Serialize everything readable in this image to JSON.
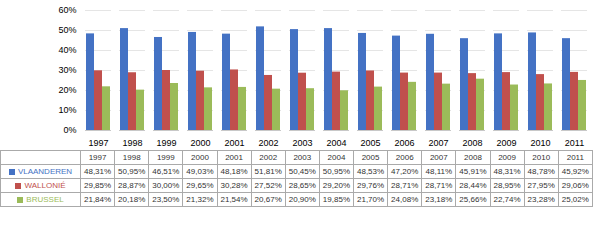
{
  "chart_data": {
    "type": "bar",
    "categories": [
      "1997",
      "1998",
      "1999",
      "2000",
      "2001",
      "2002",
      "2003",
      "2004",
      "2005",
      "2006",
      "2007",
      "2008",
      "2009",
      "2010",
      "2011"
    ],
    "series": [
      {
        "name": "VLAANDEREN",
        "color": "#4472C4",
        "values": [
          48.31,
          50.95,
          46.51,
          49.03,
          48.18,
          51.81,
          50.45,
          50.95,
          48.53,
          47.2,
          48.11,
          45.91,
          48.31,
          48.78,
          45.92
        ],
        "value_labels": [
          "48,31%",
          "50,95%",
          "46,51%",
          "49,03%",
          "48,18%",
          "51,81%",
          "50,45%",
          "50,95%",
          "48,53%",
          "47,20%",
          "48,11%",
          "45,91%",
          "48,31%",
          "48,78%",
          "45,92%"
        ]
      },
      {
        "name": "WALLONIÉ",
        "color": "#C0504D",
        "values": [
          29.85,
          28.87,
          30.0,
          29.65,
          30.28,
          27.52,
          28.65,
          29.2,
          29.76,
          28.71,
          28.71,
          28.44,
          28.95,
          27.95,
          29.06
        ],
        "value_labels": [
          "29,85%",
          "28,87%",
          "30,00%",
          "29,65%",
          "30,28%",
          "27,52%",
          "28,65%",
          "29,20%",
          "29,76%",
          "28,71%",
          "28,71%",
          "28,44%",
          "28,95%",
          "27,95%",
          "29,06%"
        ]
      },
      {
        "name": "BRUSSEL",
        "color": "#9BBB59",
        "values": [
          21.84,
          20.18,
          23.5,
          21.32,
          21.54,
          20.67,
          20.9,
          19.85,
          21.7,
          24.08,
          23.18,
          25.66,
          22.74,
          23.28,
          25.02
        ],
        "value_labels": [
          "21,84%",
          "20,18%",
          "23,50%",
          "21,32%",
          "21,54%",
          "20,67%",
          "20,90%",
          "19,85%",
          "21,70%",
          "24,08%",
          "23,18%",
          "25,66%",
          "22,74%",
          "23,28%",
          "25,02%"
        ]
      }
    ],
    "ylim": [
      0,
      60
    ],
    "yticks": [
      {
        "value": 0,
        "label": "0%"
      },
      {
        "value": 10,
        "label": "10%"
      },
      {
        "value": 20,
        "label": "20%"
      },
      {
        "value": 30,
        "label": "30%"
      },
      {
        "value": 40,
        "label": "40%"
      },
      {
        "value": 50,
        "label": "50%"
      },
      {
        "value": 60,
        "label": "60%"
      }
    ],
    "grid": true,
    "legend": "bottom"
  }
}
